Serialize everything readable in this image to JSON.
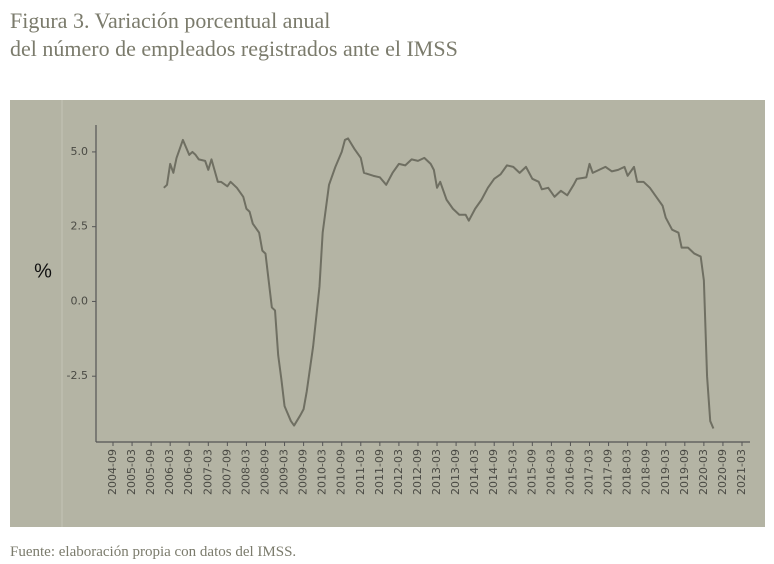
{
  "chart_data": {
    "type": "line",
    "title": [
      "Figura 3. Variación porcentual anual",
      "del número de empleados registrados ante el IMSS"
    ],
    "y_label": "%",
    "source": "Fuente: elaboración propia con datos del IMSS.",
    "xticks": [
      "2004-09",
      "2005-03",
      "2005-09",
      "2006-03",
      "2006-09",
      "2007-03",
      "2007-09",
      "2008-03",
      "2008-09",
      "2009-03",
      "2009-09",
      "2010-03",
      "2010-09",
      "2011-03",
      "2011-09",
      "2012-03",
      "2012-09",
      "2013-03",
      "2013-09",
      "2014-03",
      "2014-09",
      "2015-03",
      "2015-09",
      "2016-03",
      "2016-09",
      "2017-03",
      "2017-09",
      "2018-03",
      "2018-09",
      "2019-03",
      "2019-09",
      "2020-03",
      "2020-09",
      "2021-03"
    ],
    "ylim": [
      -4.7,
      5.9
    ],
    "yticks": [
      {
        "value": 5,
        "label": "5.0"
      },
      2.5,
      {
        "value": 0,
        "label": "0.0"
      },
      -2.5
    ],
    "series": [
      {
        "color": "#6f6f62",
        "x": [
          "2006-01",
          "2006-02",
          "2006-03",
          "2006-04",
          "2006-05",
          "2006-07",
          "2006-09",
          "2006-10",
          "2006-11",
          "2006-12",
          "2007-02",
          "2007-03",
          "2007-04",
          "2007-06",
          "2007-07",
          "2007-09",
          "2007-10",
          "2007-12",
          "2008-02",
          "2008-03",
          "2008-04",
          "2008-05",
          "2008-07",
          "2008-08",
          "2008-09",
          "2008-10",
          "2008-11",
          "2008-12",
          "2009-01",
          "2009-02",
          "2009-03",
          "2009-05",
          "2009-06",
          "2009-08",
          "2009-09",
          "2009-10",
          "2009-12",
          "2010-02",
          "2010-03",
          "2010-05",
          "2010-07",
          "2010-09",
          "2010-10",
          "2010-11",
          "2011-01",
          "2011-03",
          "2011-04",
          "2011-07",
          "2011-09",
          "2011-11",
          "2012-01",
          "2012-03",
          "2012-05",
          "2012-07",
          "2012-09",
          "2012-11",
          "2013-01",
          "2013-02",
          "2013-03",
          "2013-04",
          "2013-06",
          "2013-08",
          "2013-10",
          "2013-12",
          "2014-01",
          "2014-03",
          "2014-05",
          "2014-07",
          "2014-09",
          "2014-11",
          "2015-01",
          "2015-03",
          "2015-05",
          "2015-07",
          "2015-09",
          "2015-11",
          "2015-12",
          "2016-02",
          "2016-04",
          "2016-06",
          "2016-08",
          "2016-10",
          "2016-11",
          "2017-02",
          "2017-03",
          "2017-04",
          "2017-06",
          "2017-08",
          "2017-10",
          "2017-12",
          "2018-02",
          "2018-03",
          "2018-05",
          "2018-06",
          "2018-08",
          "2018-10",
          "2018-12",
          "2019-02",
          "2019-03",
          "2019-05",
          "2019-07",
          "2019-08",
          "2019-10",
          "2019-12",
          "2020-02",
          "2020-03",
          "2020-04",
          "2020-05",
          "2020-06"
        ],
        "values": [
          3.8,
          3.9,
          4.6,
          4.3,
          4.8,
          5.4,
          4.9,
          5.0,
          4.9,
          4.75,
          4.7,
          4.4,
          4.75,
          4.0,
          4.0,
          3.85,
          4.0,
          3.8,
          3.5,
          3.1,
          3.0,
          2.6,
          2.3,
          1.7,
          1.6,
          0.7,
          -0.2,
          -0.3,
          -1.8,
          -2.6,
          -3.5,
          -4.0,
          -4.15,
          -3.8,
          -3.6,
          -3.0,
          -1.5,
          0.5,
          2.3,
          3.9,
          4.5,
          5.0,
          5.4,
          5.45,
          5.1,
          4.8,
          4.3,
          4.2,
          4.15,
          3.9,
          4.3,
          4.6,
          4.55,
          4.75,
          4.7,
          4.8,
          4.6,
          4.4,
          3.8,
          4.0,
          3.4,
          3.1,
          2.9,
          2.9,
          2.7,
          3.1,
          3.4,
          3.8,
          4.1,
          4.25,
          4.55,
          4.5,
          4.3,
          4.5,
          4.1,
          4.0,
          3.75,
          3.8,
          3.5,
          3.7,
          3.55,
          3.9,
          4.1,
          4.15,
          4.6,
          4.3,
          4.4,
          4.5,
          4.35,
          4.4,
          4.5,
          4.2,
          4.5,
          4.0,
          4.0,
          3.8,
          3.5,
          3.2,
          2.8,
          2.4,
          2.3,
          1.8,
          1.8,
          1.6,
          1.5,
          0.7,
          -2.5,
          -4.0,
          -4.25
        ]
      }
    ]
  }
}
